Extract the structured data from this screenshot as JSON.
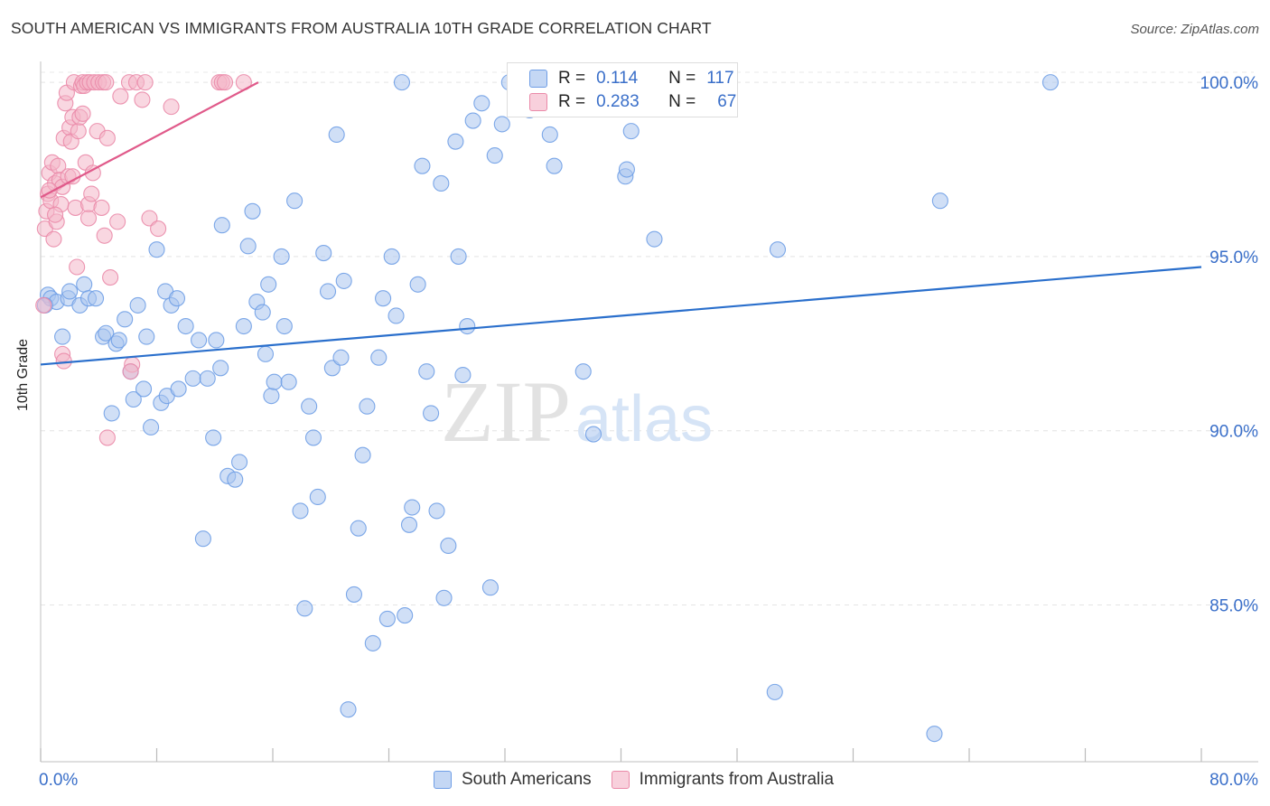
{
  "title": "SOUTH AMERICAN VS IMMIGRANTS FROM AUSTRALIA 10TH GRADE CORRELATION CHART",
  "source": "Source: ZipAtlas.com",
  "watermark": {
    "zip": "ZIP",
    "atlas": "atlas"
  },
  "legend_top": {
    "rows": [
      {
        "r_label": "R =",
        "r_value": "0.114",
        "n_label": "N =",
        "n_value": "117",
        "color": "#a9c4ee"
      },
      {
        "r_label": "R =",
        "r_value": "0.283",
        "n_label": "N =",
        "n_value": "67",
        "color": "#f4b6c9"
      }
    ]
  },
  "bottom_legend": {
    "items": [
      {
        "label": "South Americans",
        "color": "#a9c4ee"
      },
      {
        "label": "Immigrants from Australia",
        "color": "#f4b6c9"
      }
    ]
  },
  "chart_data": {
    "type": "scatter",
    "title": "SOUTH AMERICAN VS IMMIGRANTS FROM AUSTRALIA 10TH GRADE CORRELATION CHART",
    "xlabel": "",
    "ylabel": "10th Grade",
    "xlim": [
      0,
      80
    ],
    "ylim": [
      80.5,
      100.6
    ],
    "x_tick_labels": [
      "0.0%",
      "80.0%"
    ],
    "y_tick_values": [
      85,
      90,
      95,
      100
    ],
    "y_tick_labels": [
      "85.0%",
      "90.0%",
      "95.0%",
      "100.0%"
    ],
    "grid": true,
    "series": [
      {
        "name": "South Americans",
        "color": "#6f9ee6",
        "fill": "#a9c4ee",
        "trendline": {
          "x": [
            0,
            80
          ],
          "y": [
            91.9,
            94.7
          ],
          "color": "#2a6fcc"
        },
        "points": [
          [
            0.5,
            93.9
          ],
          [
            0.7,
            93.8
          ],
          [
            1.1,
            93.7
          ],
          [
            1.5,
            92.7
          ],
          [
            1.9,
            93.8
          ],
          [
            2.0,
            94.0
          ],
          [
            2.7,
            93.6
          ],
          [
            3.0,
            94.2
          ],
          [
            3.3,
            93.8
          ],
          [
            3.8,
            93.8
          ],
          [
            4.3,
            92.7
          ],
          [
            4.5,
            92.8
          ],
          [
            4.9,
            90.5
          ],
          [
            5.2,
            92.5
          ],
          [
            5.4,
            92.6
          ],
          [
            5.8,
            93.2
          ],
          [
            6.2,
            91.7
          ],
          [
            6.4,
            90.9
          ],
          [
            6.7,
            93.6
          ],
          [
            7.1,
            91.2
          ],
          [
            7.3,
            92.7
          ],
          [
            7.6,
            90.1
          ],
          [
            8.0,
            95.2
          ],
          [
            8.3,
            90.8
          ],
          [
            8.6,
            94.0
          ],
          [
            8.7,
            91.0
          ],
          [
            9.0,
            93.6
          ],
          [
            9.4,
            93.8
          ],
          [
            9.5,
            91.2
          ],
          [
            10.0,
            93.0
          ],
          [
            10.5,
            91.5
          ],
          [
            10.9,
            92.6
          ],
          [
            11.2,
            86.9
          ],
          [
            11.5,
            91.5
          ],
          [
            11.9,
            89.8
          ],
          [
            12.1,
            92.6
          ],
          [
            12.4,
            91.8
          ],
          [
            12.5,
            95.9
          ],
          [
            12.9,
            88.7
          ],
          [
            13.4,
            88.6
          ],
          [
            13.7,
            89.1
          ],
          [
            14.0,
            93.0
          ],
          [
            14.3,
            95.3
          ],
          [
            14.6,
            96.3
          ],
          [
            14.9,
            93.7
          ],
          [
            15.3,
            93.4
          ],
          [
            15.5,
            92.2
          ],
          [
            15.7,
            94.2
          ],
          [
            15.9,
            91.0
          ],
          [
            16.1,
            91.4
          ],
          [
            16.6,
            95.0
          ],
          [
            16.8,
            93.0
          ],
          [
            17.1,
            91.4
          ],
          [
            17.5,
            96.6
          ],
          [
            17.9,
            87.7
          ],
          [
            18.2,
            84.9
          ],
          [
            18.5,
            90.7
          ],
          [
            18.8,
            89.8
          ],
          [
            19.1,
            88.1
          ],
          [
            19.5,
            95.1
          ],
          [
            19.8,
            94.0
          ],
          [
            20.1,
            91.8
          ],
          [
            20.4,
            98.5
          ],
          [
            20.7,
            92.1
          ],
          [
            20.9,
            94.3
          ],
          [
            21.2,
            82.0
          ],
          [
            21.6,
            85.3
          ],
          [
            21.9,
            87.2
          ],
          [
            22.2,
            89.3
          ],
          [
            22.5,
            90.7
          ],
          [
            22.9,
            83.9
          ],
          [
            23.3,
            92.1
          ],
          [
            23.6,
            93.8
          ],
          [
            23.9,
            84.6
          ],
          [
            24.2,
            95.0
          ],
          [
            24.5,
            93.3
          ],
          [
            24.9,
            100.0
          ],
          [
            25.1,
            84.7
          ],
          [
            25.4,
            87.3
          ],
          [
            25.6,
            87.8
          ],
          [
            26.0,
            94.2
          ],
          [
            26.3,
            97.6
          ],
          [
            26.6,
            91.7
          ],
          [
            26.9,
            90.5
          ],
          [
            27.3,
            87.7
          ],
          [
            27.6,
            97.1
          ],
          [
            27.8,
            85.2
          ],
          [
            28.1,
            86.7
          ],
          [
            28.6,
            98.3
          ],
          [
            28.8,
            95.0
          ],
          [
            29.1,
            91.6
          ],
          [
            29.4,
            93.0
          ],
          [
            29.8,
            98.9
          ],
          [
            30.4,
            99.4
          ],
          [
            31.0,
            85.5
          ],
          [
            31.3,
            97.9
          ],
          [
            31.8,
            98.8
          ],
          [
            32.3,
            100.0
          ],
          [
            33.5,
            100.0
          ],
          [
            33.7,
            99.2
          ],
          [
            35.1,
            98.5
          ],
          [
            35.4,
            97.6
          ],
          [
            37.4,
            91.7
          ],
          [
            38.1,
            89.9
          ],
          [
            38.8,
            100.0
          ],
          [
            40.3,
            97.3
          ],
          [
            40.4,
            97.5
          ],
          [
            40.7,
            98.6
          ],
          [
            42.3,
            95.5
          ],
          [
            50.6,
            82.5
          ],
          [
            50.8,
            95.2
          ],
          [
            61.6,
            81.3
          ],
          [
            62.0,
            96.6
          ],
          [
            69.6,
            100.0
          ],
          [
            0.3,
            93.6
          ]
        ]
      },
      {
        "name": "Immigrants from Australia",
        "color": "#ea89a8",
        "fill": "#f4b6c9",
        "trendline": {
          "x": [
            0,
            15
          ],
          "y": [
            96.7,
            100.0
          ],
          "color": "#e05a8a"
        },
        "points": [
          [
            0.2,
            93.6
          ],
          [
            0.3,
            95.8
          ],
          [
            0.4,
            96.3
          ],
          [
            0.5,
            96.8
          ],
          [
            0.6,
            97.4
          ],
          [
            0.7,
            96.6
          ],
          [
            0.8,
            97.7
          ],
          [
            0.9,
            95.5
          ],
          [
            1.0,
            97.1
          ],
          [
            1.1,
            96.0
          ],
          [
            1.2,
            97.6
          ],
          [
            1.3,
            97.2
          ],
          [
            1.4,
            96.5
          ],
          [
            1.5,
            97.0
          ],
          [
            1.6,
            98.4
          ],
          [
            1.7,
            99.4
          ],
          [
            1.8,
            99.7
          ],
          [
            1.9,
            97.3
          ],
          [
            2.0,
            98.7
          ],
          [
            2.1,
            98.3
          ],
          [
            2.2,
            99.0
          ],
          [
            2.3,
            100.0
          ],
          [
            2.4,
            96.4
          ],
          [
            2.5,
            94.7
          ],
          [
            2.6,
            98.6
          ],
          [
            2.7,
            99.0
          ],
          [
            2.8,
            99.9
          ],
          [
            2.9,
            100.0
          ],
          [
            3.0,
            99.9
          ],
          [
            3.1,
            97.7
          ],
          [
            3.2,
            100.0
          ],
          [
            3.3,
            96.5
          ],
          [
            3.4,
            100.0
          ],
          [
            3.5,
            96.8
          ],
          [
            3.6,
            97.4
          ],
          [
            3.7,
            100.0
          ],
          [
            3.9,
            98.6
          ],
          [
            4.0,
            100.0
          ],
          [
            4.2,
            96.4
          ],
          [
            4.3,
            100.0
          ],
          [
            4.4,
            95.6
          ],
          [
            4.5,
            100.0
          ],
          [
            4.6,
            98.4
          ],
          [
            4.8,
            94.4
          ],
          [
            5.3,
            96.0
          ],
          [
            5.5,
            99.6
          ],
          [
            6.1,
            100.0
          ],
          [
            6.3,
            91.9
          ],
          [
            6.6,
            100.0
          ],
          [
            7.0,
            99.5
          ],
          [
            7.2,
            100.0
          ],
          [
            7.5,
            96.1
          ],
          [
            8.1,
            95.8
          ],
          [
            9.0,
            99.3
          ],
          [
            12.3,
            100.0
          ],
          [
            12.5,
            100.0
          ],
          [
            12.7,
            100.0
          ],
          [
            14.0,
            100.0
          ],
          [
            1.5,
            92.2
          ],
          [
            1.6,
            92.0
          ],
          [
            4.6,
            89.8
          ],
          [
            6.2,
            91.7
          ],
          [
            2.9,
            99.1
          ],
          [
            1.0,
            96.2
          ],
          [
            0.6,
            96.9
          ],
          [
            2.2,
            97.3
          ],
          [
            3.3,
            96.1
          ]
        ]
      }
    ]
  }
}
